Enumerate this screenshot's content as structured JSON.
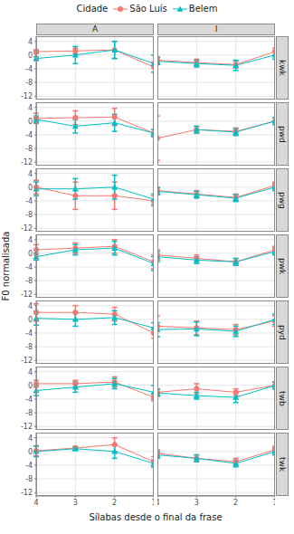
{
  "chart_data": {
    "type": "line",
    "legend_title": "Cidade",
    "x_label": "Sílabas desde o final da frase",
    "y_label": "F0 normalisada",
    "categories": [
      "4",
      "3",
      "2",
      "1"
    ],
    "ylim": [
      -13,
      5.5
    ],
    "yticks": [
      4,
      0,
      -4,
      -8,
      -12
    ],
    "grid": true,
    "legend": "top",
    "columns": [
      "A",
      "I"
    ],
    "rows": [
      "kwk",
      "pwd",
      "pwg",
      "pwk",
      "pyd",
      "twb",
      "twk"
    ],
    "series": [
      {
        "name": "São Luís",
        "color": "#F8766D",
        "marker": "circle"
      },
      {
        "name": "Belem",
        "color": "#00BFC4",
        "marker": "triangle"
      }
    ],
    "panels": [
      {
        "row": "kwk",
        "column": "A",
        "values": [
          [
            1,
            1.2,
            1.5,
            -3.5
          ],
          [
            -1,
            0,
            1.5,
            -2.5
          ]
        ],
        "errors": [
          [
            0.5,
            0.8,
            2.5,
            1.5
          ],
          [
            0.5,
            2.5,
            2.5,
            2.5
          ]
        ]
      },
      {
        "row": "kwk",
        "column": "I",
        "values": [
          [
            -1.5,
            -2.2,
            -2.8,
            1
          ],
          [
            -1.8,
            -2.5,
            -3,
            0
          ]
        ],
        "errors": [
          [
            1,
            1,
            1,
            1
          ],
          [
            1,
            1,
            1.5,
            1.2
          ]
        ]
      },
      {
        "row": "pwd",
        "column": "A",
        "values": [
          [
            0.8,
            1,
            1.2,
            -3.5
          ],
          [
            0.5,
            -1.5,
            -0.5,
            -3.5
          ]
        ],
        "errors": [
          [
            1.5,
            2,
            2.5,
            1
          ],
          [
            1,
            2,
            2.5,
            1
          ]
        ]
      },
      {
        "row": "pwd",
        "column": "I",
        "values": [
          [
            -5,
            -2.5,
            -3,
            0
          ],
          [
            null,
            -2.5,
            -3.2,
            0
          ]
        ],
        "errors": [
          [
            6.5,
            1,
            1,
            1
          ],
          [
            null,
            1,
            1,
            1
          ]
        ]
      },
      {
        "row": "pwg",
        "column": "A",
        "values": [
          [
            0,
            -2.5,
            -2.5,
            -4
          ],
          [
            -0.5,
            -0.5,
            0,
            -3.5
          ]
        ],
        "errors": [
          [
            2,
            4,
            4,
            1.5
          ],
          [
            2,
            3,
            3.5,
            1.5
          ]
        ]
      },
      {
        "row": "pwg",
        "column": "I",
        "values": [
          [
            -1,
            -2,
            -3,
            0.5
          ],
          [
            -1.2,
            -2.2,
            -3.2,
            0
          ]
        ],
        "errors": [
          [
            1,
            1,
            1,
            1
          ],
          [
            1,
            1,
            1,
            1
          ]
        ]
      },
      {
        "row": "pwk",
        "column": "A",
        "values": [
          [
            1,
            1.5,
            2,
            -2.5
          ],
          [
            -1,
            1,
            1.5,
            -3
          ]
        ],
        "errors": [
          [
            1.5,
            1.5,
            2,
            2
          ],
          [
            1,
            1.5,
            2,
            2
          ]
        ]
      },
      {
        "row": "pwk",
        "column": "I",
        "values": [
          [
            -0.5,
            -1.5,
            -2.5,
            1
          ],
          [
            -1,
            -2,
            -2.5,
            0.5
          ]
        ],
        "errors": [
          [
            1.5,
            1,
            1,
            1
          ],
          [
            1.5,
            1,
            1,
            1
          ]
        ]
      },
      {
        "row": "pyd",
        "column": "A",
        "values": [
          [
            2,
            2,
            1.5,
            -4
          ],
          [
            0.3,
            0,
            0.5,
            -2.5
          ]
        ],
        "errors": [
          [
            2.5,
            2,
            2,
            1.5
          ],
          [
            2,
            2,
            2,
            1.5
          ]
        ]
      },
      {
        "row": "pyd",
        "column": "I",
        "values": [
          [
            -2,
            -2.5,
            -3,
            -0.5
          ],
          [
            -3,
            -2.8,
            -3.5,
            0
          ]
        ],
        "errors": [
          [
            3,
            2,
            1.5,
            1.5
          ],
          [
            2,
            2,
            1.5,
            1.5
          ]
        ]
      },
      {
        "row": "twb",
        "column": "A",
        "values": [
          [
            0.5,
            0.5,
            1,
            -3.5
          ],
          [
            -1.5,
            -0.5,
            0.5,
            -2
          ]
        ],
        "errors": [
          [
            1,
            1,
            1.5,
            1
          ],
          [
            1.5,
            1.5,
            1.5,
            2
          ]
        ]
      },
      {
        "row": "twb",
        "column": "I",
        "values": [
          [
            -2,
            -1,
            -2,
            0
          ],
          [
            -2.2,
            -3,
            -3.5,
            0
          ]
        ],
        "errors": [
          [
            1,
            1.5,
            1,
            1
          ],
          [
            1,
            1,
            1.5,
            1
          ]
        ]
      },
      {
        "row": "twk",
        "column": "A",
        "values": [
          [
            0.2,
            1,
            2,
            -3
          ],
          [
            0,
            0.8,
            0,
            -3.5
          ]
        ],
        "errors": [
          [
            1.5,
            0.5,
            2,
            1.5
          ],
          [
            1.5,
            0.5,
            2,
            1
          ]
        ]
      },
      {
        "row": "twk",
        "column": "I",
        "values": [
          [
            -0.5,
            -2,
            -3,
            0.5
          ],
          [
            -1,
            -2,
            -3.5,
            0
          ]
        ],
        "errors": [
          [
            1,
            1,
            1,
            1
          ],
          [
            1,
            1,
            1,
            1
          ]
        ]
      }
    ]
  }
}
